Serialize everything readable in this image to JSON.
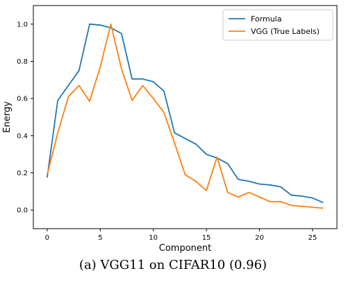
{
  "caption": "(a) VGG11 on CIFAR10 (0.96)",
  "chart_data": {
    "type": "line",
    "title": "",
    "xlabel": "Component",
    "ylabel": "Energy",
    "xlim": [
      -1.3,
      27.3
    ],
    "ylim": [
      -0.1,
      1.1
    ],
    "xticks": [
      0,
      5,
      10,
      15,
      20,
      25
    ],
    "yticks": [
      0.0,
      0.2,
      0.4,
      0.6,
      0.8,
      1.0
    ],
    "xtick_labels": [
      "0",
      "5",
      "10",
      "15",
      "20",
      "25"
    ],
    "ytick_labels": [
      "0.0",
      "0.2",
      "0.4",
      "0.6",
      "0.8",
      "1.0"
    ],
    "legend_position": "top-right",
    "grid": false,
    "x": [
      0,
      1,
      2,
      3,
      4,
      5,
      6,
      7,
      8,
      9,
      10,
      11,
      12,
      13,
      14,
      15,
      16,
      17,
      18,
      19,
      20,
      21,
      22,
      23,
      24,
      25,
      26
    ],
    "series": [
      {
        "name": "Formula",
        "color": "#1f77b4",
        "values": [
          0.175,
          0.59,
          0.67,
          0.75,
          1.0,
          0.995,
          0.98,
          0.95,
          0.705,
          0.705,
          0.69,
          0.64,
          0.415,
          0.385,
          0.355,
          0.3,
          0.28,
          0.25,
          0.165,
          0.155,
          0.14,
          0.135,
          0.125,
          0.08,
          0.075,
          0.065,
          0.04
        ]
      },
      {
        "name": "VGG (True Labels)",
        "color": "#ff7f0e",
        "values": [
          0.19,
          0.415,
          0.61,
          0.67,
          0.585,
          0.77,
          1.0,
          0.76,
          0.59,
          0.67,
          0.6,
          0.525,
          0.36,
          0.19,
          0.155,
          0.105,
          0.285,
          0.095,
          0.07,
          0.095,
          0.07,
          0.045,
          0.045,
          0.025,
          0.02,
          0.015,
          0.01
        ]
      }
    ]
  }
}
